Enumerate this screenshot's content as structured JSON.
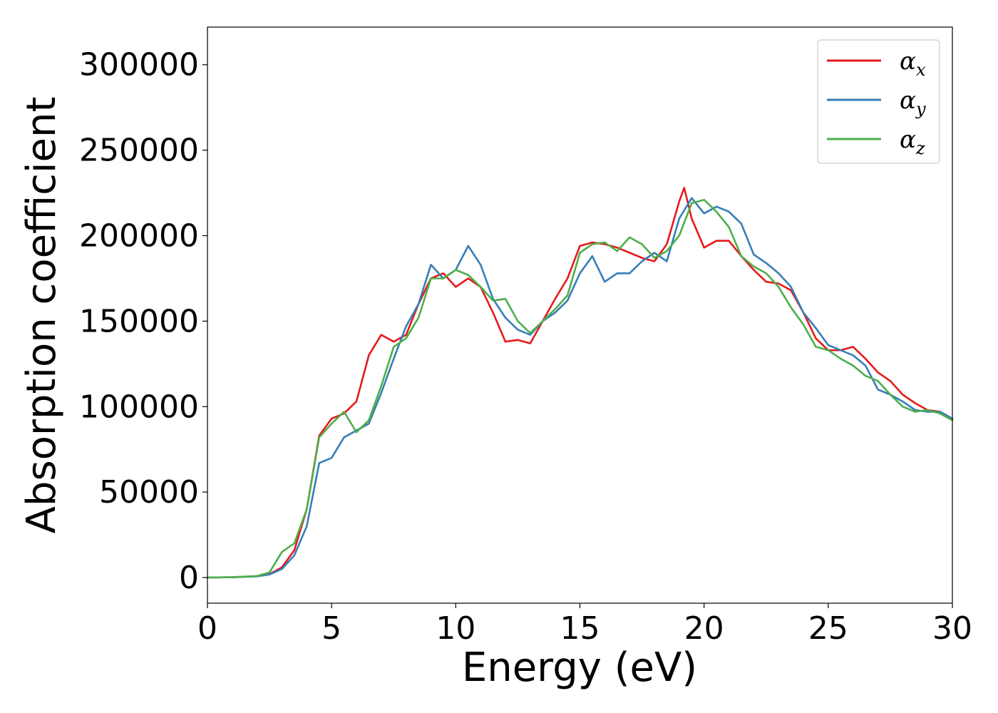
{
  "chart_data": {
    "type": "line",
    "xlabel": "Energy (eV)",
    "ylabel": "Absorption coefficient",
    "xlim": [
      0,
      30
    ],
    "ylim": [
      -15000,
      322000
    ],
    "xticks": [
      0,
      5,
      10,
      15,
      20,
      25,
      30
    ],
    "xtick_labels": [
      "0",
      "5",
      "10",
      "15",
      "20",
      "25",
      "30"
    ],
    "yticks": [
      0,
      50000,
      100000,
      150000,
      200000,
      250000,
      300000
    ],
    "ytick_labels": [
      "0",
      "50000",
      "100000",
      "150000",
      "200000",
      "250000",
      "300000"
    ],
    "grid": false,
    "legend_position": "top-right",
    "series": [
      {
        "name": "αx",
        "legend_base": "α",
        "legend_sub": "x",
        "color": "#e41a1c",
        "x": [
          0,
          1,
          2,
          2.5,
          3,
          3.5,
          4,
          4.5,
          5,
          5.5,
          6,
          6.5,
          7,
          7.5,
          8,
          8.5,
          9,
          9.5,
          10,
          10.5,
          11,
          11.5,
          12,
          12.5,
          13,
          13.5,
          14,
          14.5,
          15,
          15.5,
          16,
          16.5,
          17,
          17.5,
          18,
          18.5,
          19,
          19.2,
          19.5,
          20,
          20.5,
          21,
          21.5,
          22,
          22.5,
          23,
          23.5,
          24,
          24.5,
          25,
          25.5,
          26,
          26.5,
          27,
          27.5,
          28,
          28.5,
          29,
          29.5,
          30
        ],
        "y": [
          0,
          200,
          800,
          2000,
          6000,
          16000,
          40000,
          83000,
          93000,
          96000,
          103000,
          130000,
          142000,
          138000,
          142000,
          160000,
          175000,
          178000,
          170000,
          175000,
          170000,
          155000,
          138000,
          139000,
          137000,
          150000,
          163000,
          175000,
          194000,
          196000,
          195000,
          193000,
          190000,
          187000,
          185000,
          195000,
          220000,
          228000,
          210000,
          193000,
          197000,
          197000,
          188000,
          180000,
          173000,
          172000,
          168000,
          155000,
          140000,
          133000,
          133000,
          135000,
          128000,
          120000,
          115000,
          107000,
          102000,
          98000,
          97000,
          93000
        ]
      },
      {
        "name": "αy",
        "legend_base": "α",
        "legend_sub": "y",
        "color": "#377eb8",
        "x": [
          0,
          1,
          2,
          2.5,
          3,
          3.5,
          4,
          4.5,
          5,
          5.5,
          6,
          6.5,
          7,
          7.5,
          8,
          8.5,
          9,
          9.5,
          10,
          10.5,
          11,
          11.5,
          12,
          12.5,
          13,
          13.5,
          14,
          14.5,
          15,
          15.5,
          16,
          16.5,
          17,
          17.5,
          18,
          18.5,
          19,
          19.5,
          20,
          20.5,
          21,
          21.5,
          22,
          22.5,
          23,
          23.5,
          24,
          24.5,
          25,
          25.5,
          26,
          26.5,
          27,
          27.5,
          28,
          28.5,
          29,
          29.5,
          30
        ],
        "y": [
          0,
          200,
          700,
          1800,
          5000,
          13000,
          30000,
          67000,
          70000,
          82000,
          86000,
          90000,
          108000,
          128000,
          147000,
          160000,
          183000,
          175000,
          180000,
          194000,
          183000,
          163000,
          152000,
          145000,
          142000,
          150000,
          155000,
          162000,
          178000,
          188000,
          173000,
          178000,
          178000,
          185000,
          190000,
          185000,
          210000,
          222000,
          213000,
          217000,
          214000,
          207000,
          189000,
          184000,
          178000,
          170000,
          155000,
          146000,
          136000,
          133000,
          130000,
          124000,
          110000,
          107000,
          103000,
          98000,
          97000,
          97000,
          93000
        ]
      },
      {
        "name": "αz",
        "legend_base": "α",
        "legend_sub": "z",
        "color": "#4daf4a",
        "x": [
          0,
          1,
          2,
          2.5,
          3,
          3.5,
          4,
          4.5,
          5,
          5.5,
          6,
          6.5,
          7,
          7.5,
          8,
          8.5,
          9,
          9.5,
          10,
          10.5,
          11,
          11.5,
          12,
          12.5,
          13,
          13.5,
          14,
          14.5,
          15,
          15.5,
          16,
          16.5,
          17,
          17.5,
          18,
          18.5,
          19,
          19.5,
          20,
          20.5,
          21,
          21.5,
          22,
          22.5,
          23,
          23.5,
          24,
          24.5,
          25,
          25.5,
          26,
          26.5,
          27,
          27.5,
          28,
          28.5,
          29,
          29.5,
          30
        ],
        "y": [
          0,
          200,
          900,
          3000,
          15000,
          20000,
          40000,
          82000,
          90000,
          97000,
          85000,
          92000,
          112000,
          135000,
          140000,
          152000,
          175000,
          175000,
          180000,
          177000,
          170000,
          162000,
          163000,
          150000,
          143000,
          150000,
          157000,
          165000,
          190000,
          195000,
          196000,
          191000,
          199000,
          195000,
          187000,
          191000,
          200000,
          219000,
          221000,
          214000,
          205000,
          188000,
          182000,
          178000,
          170000,
          158000,
          148000,
          135000,
          133000,
          128000,
          124000,
          118000,
          115000,
          107000,
          100000,
          97000,
          98000,
          96000,
          92000
        ]
      }
    ]
  }
}
